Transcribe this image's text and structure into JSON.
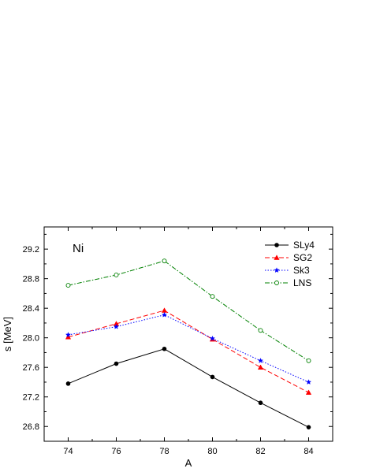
{
  "chart_data": {
    "type": "line",
    "annotation": "Ni",
    "xlabel": "A",
    "ylabel": "s [MeV]",
    "x": [
      74,
      76,
      78,
      80,
      82,
      84
    ],
    "xlim": [
      73,
      85
    ],
    "ylim": [
      26.6,
      29.5
    ],
    "xticks": [
      74,
      76,
      78,
      80,
      82,
      84
    ],
    "yticks": [
      26.8,
      27.2,
      27.6,
      28.0,
      28.4,
      28.8,
      29.2
    ],
    "ytick_labels": [
      "26.8",
      "27.2",
      "27.6",
      "28.0",
      "28.4",
      "28.8",
      "29.2"
    ],
    "grid": false,
    "legend_position": "top-right",
    "series": [
      {
        "name": "SLy4",
        "values": [
          27.38,
          27.65,
          27.85,
          27.47,
          27.12,
          26.79
        ],
        "color": "#000000",
        "dash": "solid",
        "marker": "circle-filled"
      },
      {
        "name": "SG2",
        "values": [
          28.01,
          28.19,
          28.37,
          27.98,
          27.6,
          27.26
        ],
        "color": "#ff0000",
        "dash": "dashed",
        "marker": "triangle-filled"
      },
      {
        "name": "Sk3",
        "values": [
          28.04,
          28.15,
          28.31,
          27.99,
          27.69,
          27.4
        ],
        "color": "#0000ff",
        "dash": "dotted",
        "marker": "star"
      },
      {
        "name": "LNS",
        "values": [
          28.71,
          28.85,
          29.04,
          28.56,
          28.1,
          27.69
        ],
        "color": "#008000",
        "dash": "dash-dot",
        "marker": "circle-open"
      }
    ]
  }
}
